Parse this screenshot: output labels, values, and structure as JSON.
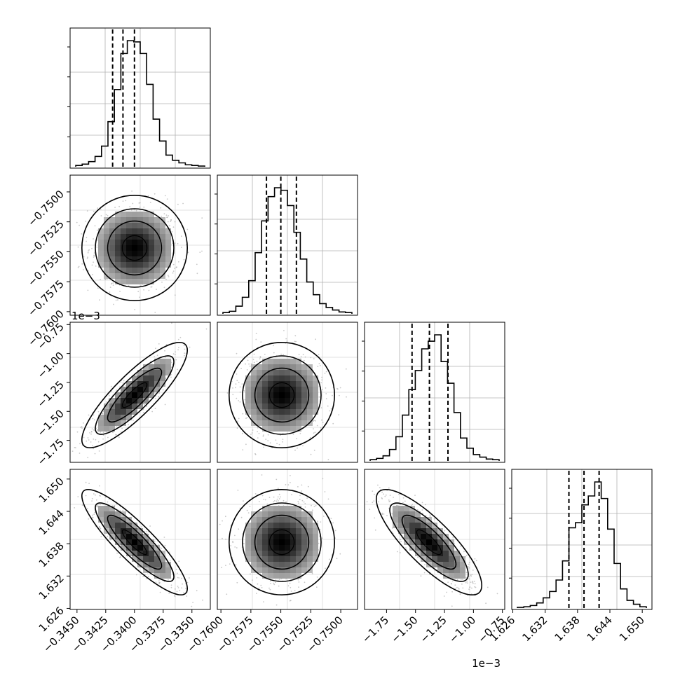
{
  "chart_data": {
    "type": "corner",
    "parameters": 4,
    "axes": [
      {
        "ticks": [
          "−0.3450",
          "−0.3425",
          "−0.3400",
          "−0.3375",
          "−0.3350"
        ],
        "tick_values": [
          -0.345,
          -0.3425,
          -0.34,
          -0.3375,
          -0.335
        ],
        "range": [
          -0.3456,
          -0.3334
        ],
        "quantiles": [
          -0.3419,
          -0.341,
          -0.34
        ],
        "offset_label": ""
      },
      {
        "ticks": [
          "−0.7600",
          "−0.7575",
          "−0.7550",
          "−0.7525",
          "−0.7500"
        ],
        "tick_values": [
          -0.76,
          -0.7575,
          -0.755,
          -0.7525,
          -0.75
        ],
        "range": [
          -0.7603,
          -0.7486
        ],
        "quantiles": [
          -0.7562,
          -0.755,
          -0.7537
        ],
        "offset_label": ""
      },
      {
        "ticks": [
          "−1.75",
          "−1.50",
          "−1.25",
          "−1.00",
          "−0.75"
        ],
        "tick_values": [
          -1.75,
          -1.5,
          -1.25,
          -1.0,
          -0.75
        ],
        "range": [
          -1.94,
          -0.73
        ],
        "quantiles": [
          -1.53,
          -1.38,
          -1.22
        ],
        "offset_label": "1e−3"
      },
      {
        "ticks": [
          "1.626",
          "1.632",
          "1.638",
          "1.644",
          "1.650"
        ],
        "tick_values": [
          1.626,
          1.632,
          1.638,
          1.644,
          1.65
        ],
        "range": [
          1.6258,
          1.6518
        ],
        "quantiles": [
          1.6364,
          1.6392,
          1.642
        ],
        "offset_label": ""
      }
    ],
    "histograms": [
      [
        1,
        2,
        4,
        8,
        16,
        35,
        60,
        88,
        98,
        97,
        88,
        64,
        37,
        20,
        9,
        5,
        3,
        1.5,
        1,
        0.5
      ],
      [
        1,
        2,
        6,
        13,
        26,
        48,
        73,
        92,
        99,
        97,
        85,
        64,
        43,
        25,
        15,
        8,
        5,
        3,
        1.5,
        1
      ],
      [
        1,
        2,
        4,
        9,
        19,
        36,
        56,
        71,
        88,
        94,
        99,
        78,
        61,
        38,
        18,
        10,
        5,
        3,
        1.5,
        1
      ],
      [
        0.5,
        1,
        2,
        4,
        8,
        13,
        22,
        37,
        63,
        67,
        81,
        88,
        99,
        86,
        62,
        35,
        15,
        6,
        3,
        1
      ]
    ],
    "correlations": [
      [
        1,
        0,
        0,
        0
      ],
      [
        0,
        1,
        0,
        0
      ],
      [
        0.85,
        0,
        1,
        0
      ],
      [
        -0.88,
        0,
        -0.82,
        1
      ]
    ],
    "grid": true,
    "title": "",
    "xlabel": "",
    "ylabel": ""
  }
}
